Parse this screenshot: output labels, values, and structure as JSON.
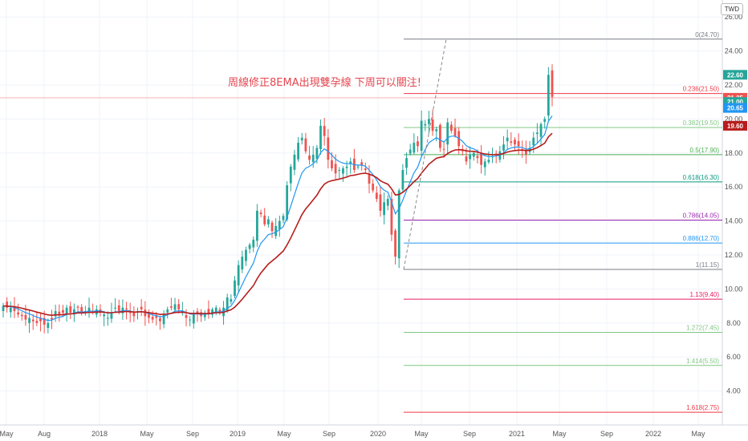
{
  "currency_label": "TWD",
  "annotation": "周線修正8EMA出現雙孕線 下周可以關注!",
  "colors": {
    "up": "#26a69a",
    "down": "#ef5350",
    "ema_fast": "#2196f3",
    "ema_slow": "#b71c1c",
    "grid": "#f0f3fa"
  },
  "chart_data": {
    "type": "candlestick",
    "title": "",
    "ylim": [
      2,
      27
    ],
    "y_ticks": [
      4,
      6,
      8,
      10,
      12,
      14,
      16,
      18,
      20,
      22,
      24,
      26
    ],
    "y_tick_labels": [
      "4.00",
      "6.00",
      "8.00",
      "10.00",
      "12.00",
      "14.00",
      "16.00",
      "18.00",
      "20.00",
      "22.00",
      "24.00",
      "26.00"
    ],
    "x_tick_labels": [
      "May",
      "Aug",
      "2018",
      "May",
      "Sep",
      "2019",
      "May",
      "Sep",
      "2020",
      "May",
      "Sep",
      "2021",
      "May",
      "Sep",
      "2022",
      "May"
    ],
    "weekly_close": [
      9.0,
      8.9,
      8.9,
      8.7,
      8.5,
      8.4,
      8.2,
      8.3,
      8.1,
      8.0,
      8.1,
      7.9,
      8.0,
      8.2,
      8.7,
      8.5,
      8.6,
      8.9,
      8.6,
      8.8,
      8.9,
      8.6,
      8.7,
      8.9,
      8.6,
      8.8,
      8.7,
      8.5,
      8.3,
      8.6,
      8.9,
      8.7,
      8.9,
      8.8,
      8.6,
      8.4,
      8.7,
      8.8,
      8.4,
      8.3,
      8.2,
      8.3,
      8.1,
      8.5,
      8.8,
      8.9,
      9.1,
      8.8,
      8.7,
      8.3,
      8.2,
      8.5,
      8.6,
      8.4,
      8.6,
      8.5,
      8.8,
      8.9,
      8.6,
      8.9,
      9.5,
      9.4,
      10.5,
      11.4,
      11.9,
      12.3,
      12.6,
      12.9,
      14.6,
      14.4,
      13.8,
      14.1,
      13.4,
      13.7,
      14.0,
      14.3,
      16.1,
      17.2,
      17.9,
      18.6,
      18.9,
      18.1,
      17.6,
      17.9,
      18.3,
      19.6,
      19.0,
      17.6,
      17.1,
      16.8,
      17.0,
      17.1,
      17.2,
      17.5,
      17.0,
      17.2,
      17.3,
      17.0,
      16.2,
      15.8,
      15.3,
      14.6,
      15.1,
      15.3,
      13.2,
      11.9,
      15.8,
      17.0,
      17.7,
      18.2,
      18.6,
      18.4,
      19.9,
      19.7,
      20.0,
      19.3,
      19.4,
      18.3,
      18.2,
      19.8,
      19.3,
      19.0,
      18.4,
      18.1,
      17.5,
      17.9,
      18.0,
      17.7,
      17.3,
      17.5,
      17.6,
      17.8,
      17.9,
      18.1,
      18.5,
      18.9,
      18.6,
      18.5,
      18.4,
      18.2,
      17.9,
      18.3,
      18.9,
      19.2,
      19.7,
      20.0,
      22.6,
      21.3
    ],
    "ema_fast": [],
    "ema_slow": [],
    "price_tags": [
      {
        "value": 22.6,
        "label": "22.60",
        "color": "#26a69a"
      },
      {
        "value": 21.25,
        "label": "21.25",
        "color": "#ef5350"
      },
      {
        "value": 21.0,
        "label": "21.00",
        "color": "#26a69a"
      },
      {
        "value": 20.65,
        "label": "20.65",
        "color": "#2196f3"
      },
      {
        "value": 19.6,
        "label": "19.60",
        "color": "#b71c1c"
      }
    ],
    "fib_levels": [
      {
        "label": "0(24.70)",
        "value": 24.7,
        "color": "#787b86"
      },
      {
        "label": "0.236(21.50)",
        "value": 21.5,
        "color": "#f23645"
      },
      {
        "label": "0.382(19.50)",
        "value": 19.5,
        "color": "#81c784"
      },
      {
        "label": "0.5(17.90)",
        "value": 17.9,
        "color": "#4caf50"
      },
      {
        "label": "0.618(16.30)",
        "value": 16.3,
        "color": "#089981"
      },
      {
        "label": "0.786(14.05)",
        "value": 14.05,
        "color": "#9c27b0"
      },
      {
        "label": "0.886(12.70)",
        "value": 12.7,
        "color": "#2196f3"
      },
      {
        "label": "1(11.15)",
        "value": 11.15,
        "color": "#787b86"
      },
      {
        "label": "1.13(9.40)",
        "value": 9.4,
        "color": "#e91e63"
      },
      {
        "label": "1.272(7.45)",
        "value": 7.45,
        "color": "#81c784"
      },
      {
        "label": "1.414(5.50)",
        "value": 5.5,
        "color": "#81c784"
      },
      {
        "label": "1.618(2.75)",
        "value": 2.75,
        "color": "#f23645"
      }
    ],
    "horizontal_line": {
      "value": 21.25,
      "color": "#ef5350"
    }
  }
}
